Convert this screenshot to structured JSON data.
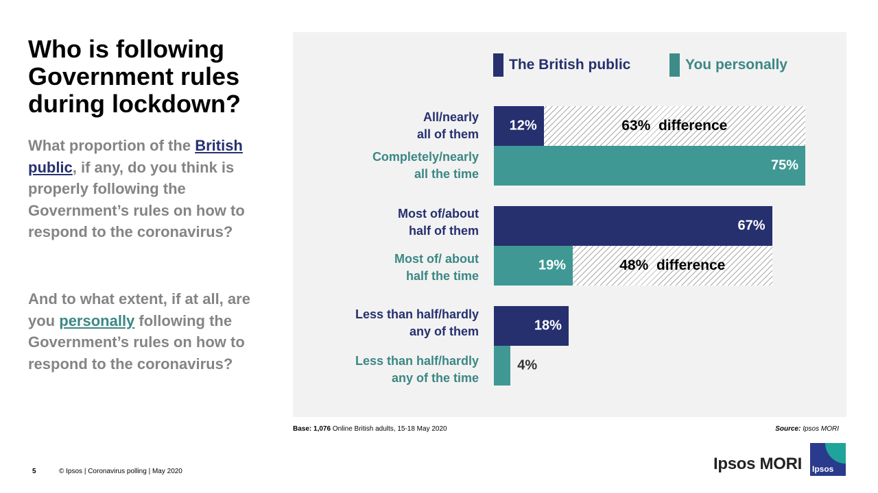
{
  "title": "Who is following Government rules during lockdown?",
  "question1": {
    "prefix": "What proportion of the",
    "highlight": "British public",
    "suffix": ", if any, do you think is properly following the Government’s rules on how to respond to the coronavirus?"
  },
  "question2": {
    "prefix": "And to what extent, if at all, are you",
    "highlight": "personally",
    "suffix": "following the Government’s rules on how to respond to the coronavirus?"
  },
  "colors": {
    "public": "#26306f",
    "personal": "#3f9894",
    "panel": "#f2f2f2"
  },
  "chart_data": {
    "type": "bar",
    "orientation": "horizontal",
    "xlim": [
      0,
      75
    ],
    "series": [
      {
        "name": "The British public",
        "values": [
          12,
          67,
          18
        ]
      },
      {
        "name": "You personally",
        "values": [
          75,
          19,
          4
        ]
      }
    ],
    "categories": [
      {
        "public_label": [
          "All/nearly",
          "all of them"
        ],
        "personal_label": [
          "Completely/nearly",
          "all the time"
        ]
      },
      {
        "public_label": [
          "Most of/about",
          "half of them"
        ],
        "personal_label": [
          "Most of/ about",
          "half the time"
        ]
      },
      {
        "public_label": [
          "Less than half/hardly",
          "any of them"
        ],
        "personal_label": [
          "Less than half/hardly",
          "any of the time"
        ]
      }
    ],
    "value_labels": {
      "public": [
        "12%",
        "67%",
        "18%"
      ],
      "personal": [
        "75%",
        "19%",
        "4%"
      ]
    },
    "differences": [
      {
        "group": 0,
        "series": "The British public",
        "from": 12,
        "to": 75,
        "pct": "63%",
        "word": "difference"
      },
      {
        "group": 1,
        "series": "You personally",
        "from": 19,
        "to": 67,
        "pct": "48%",
        "word": "difference"
      }
    ],
    "legend_position": "top-right"
  },
  "legend": {
    "public": "The British public",
    "personal": "You personally"
  },
  "base_note": {
    "label": "Base:",
    "value": "1,076",
    "text": "Online British adults, 15-18 May 2020"
  },
  "source_note": {
    "label": "Source:",
    "value": "Ipsos MORI"
  },
  "footer": {
    "page": "5",
    "text": "© Ipsos | Coronavirus polling | May 2020"
  },
  "brand": {
    "name": "Ipsos MORI",
    "logo_text": "Ipsos"
  }
}
